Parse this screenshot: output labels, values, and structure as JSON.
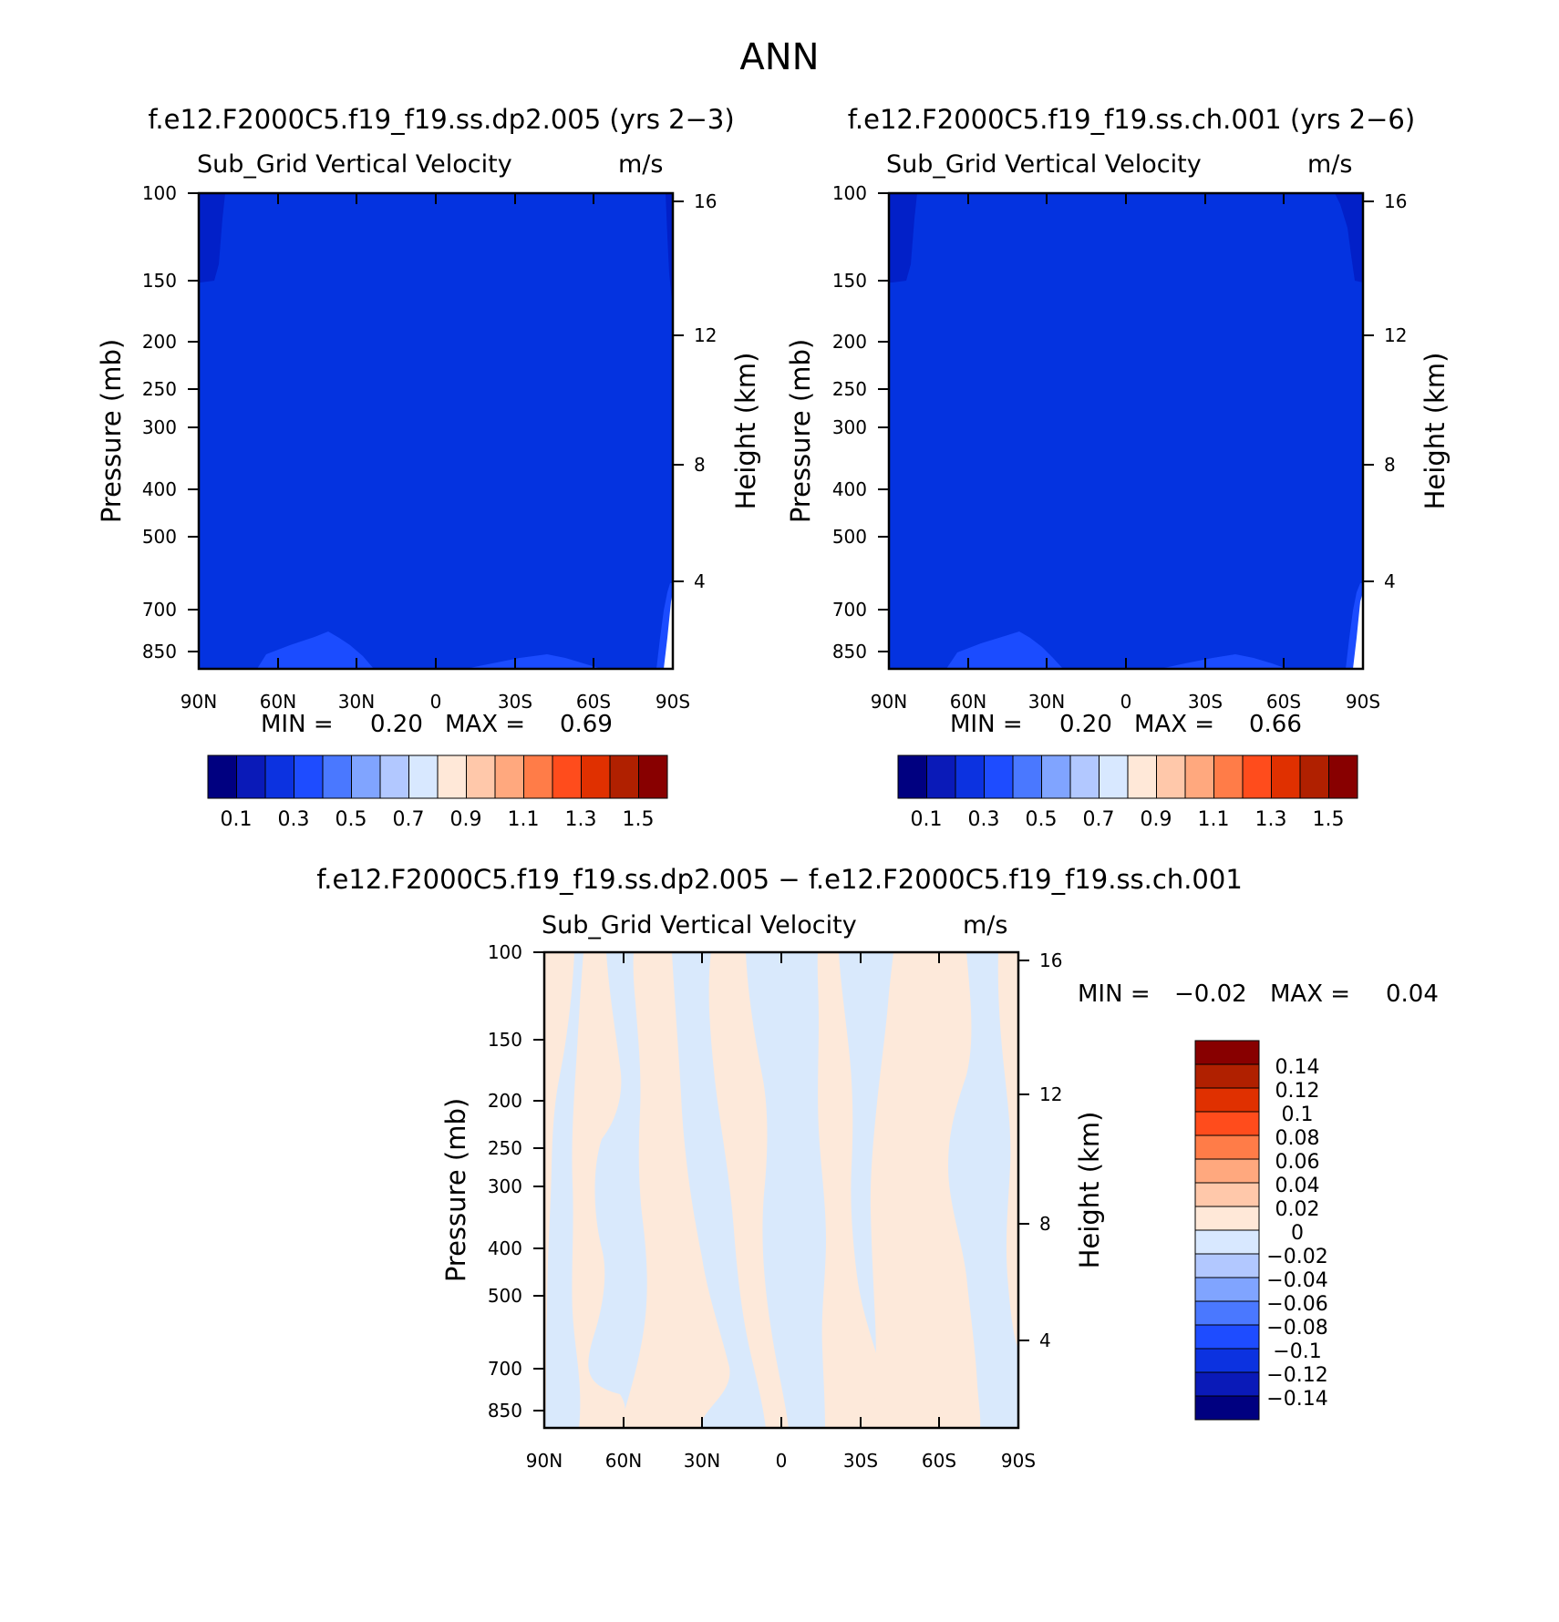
{
  "page": {
    "title": "ANN",
    "diff_title": "f.e12.F2000C5.f19_f19.ss.dp2.005 − f.e12.F2000C5.f19_f19.ss.ch.001"
  },
  "chart_data": [
    {
      "type": "heatmap",
      "title": "f.e12.F2000C5.f19_f19.ss.dp2.005 (yrs 2−3)",
      "subtitle": "Sub_Grid Vertical Velocity",
      "units": "m/s",
      "ylabel": "Pressure (mb)",
      "ylabel_right": "Height (km)",
      "x_ticks": [
        "90N",
        "60N",
        "30N",
        "0",
        "30S",
        "60S",
        "90S"
      ],
      "y_ticks": [
        "100",
        "150",
        "200",
        "250",
        "300",
        "400",
        "500",
        "700",
        "850"
      ],
      "y2_ticks": [
        "16",
        "12",
        "8",
        "4"
      ],
      "min_label": "MIN =",
      "min_value": "0.20",
      "max_label": "MAX =",
      "max_value": "0.69",
      "min": 0.2,
      "max": 0.69,
      "colorbar_labels": [
        "0.1",
        "0.3",
        "0.5",
        "0.7",
        "0.9",
        "1.1",
        "1.3",
        "1.5"
      ]
    },
    {
      "type": "heatmap",
      "title": "f.e12.F2000C5.f19_f19.ss.ch.001 (yrs 2−6)",
      "subtitle": "Sub_Grid Vertical Velocity",
      "units": "m/s",
      "ylabel": "Pressure (mb)",
      "ylabel_right": "Height (km)",
      "x_ticks": [
        "90N",
        "60N",
        "30N",
        "0",
        "30S",
        "60S",
        "90S"
      ],
      "y_ticks": [
        "100",
        "150",
        "200",
        "250",
        "300",
        "400",
        "500",
        "700",
        "850"
      ],
      "y2_ticks": [
        "16",
        "12",
        "8",
        "4"
      ],
      "min_label": "MIN =",
      "min_value": "0.20",
      "max_label": "MAX =",
      "max_value": "0.66",
      "min": 0.2,
      "max": 0.66,
      "colorbar_labels": [
        "0.1",
        "0.3",
        "0.5",
        "0.7",
        "0.9",
        "1.1",
        "1.3",
        "1.5"
      ]
    },
    {
      "type": "heatmap",
      "subtitle": "Sub_Grid Vertical Velocity",
      "units": "m/s",
      "ylabel": "Pressure (mb)",
      "ylabel_right": "Height (km)",
      "x_ticks": [
        "90N",
        "60N",
        "30N",
        "0",
        "30S",
        "60S",
        "90S"
      ],
      "y_ticks": [
        "100",
        "150",
        "200",
        "250",
        "300",
        "400",
        "500",
        "700",
        "850"
      ],
      "y2_ticks": [
        "16",
        "12",
        "8",
        "4"
      ],
      "min_label": "MIN =",
      "min_value": "−0.02",
      "max_label": "MAX =",
      "max_value": "0.04",
      "min": -0.02,
      "max": 0.04,
      "colorbar_labels": [
        "0.14",
        "0.12",
        "0.1",
        "0.08",
        "0.06",
        "0.04",
        "0.02",
        "0",
        "−0.02",
        "−0.04",
        "−0.06",
        "−0.08",
        "−0.1",
        "−0.12",
        "−0.14"
      ]
    }
  ],
  "colors": {
    "main_palette": [
      "#000080",
      "#0a1ab8",
      "#0c32e0",
      "#1e4cff",
      "#4a78ff",
      "#80a4ff",
      "#b2c8ff",
      "#d8e8ff",
      "#ffe8d8",
      "#ffc8aa",
      "#ffa87e",
      "#ff7c48",
      "#ff4c1c",
      "#e03000",
      "#b02000",
      "#880000"
    ],
    "field_blue": "#0433e0",
    "field_dark": "#0220c8",
    "field_light": "#1b4cff",
    "diff_pos": "#fde9da",
    "diff_neg": "#d9e9fc"
  }
}
